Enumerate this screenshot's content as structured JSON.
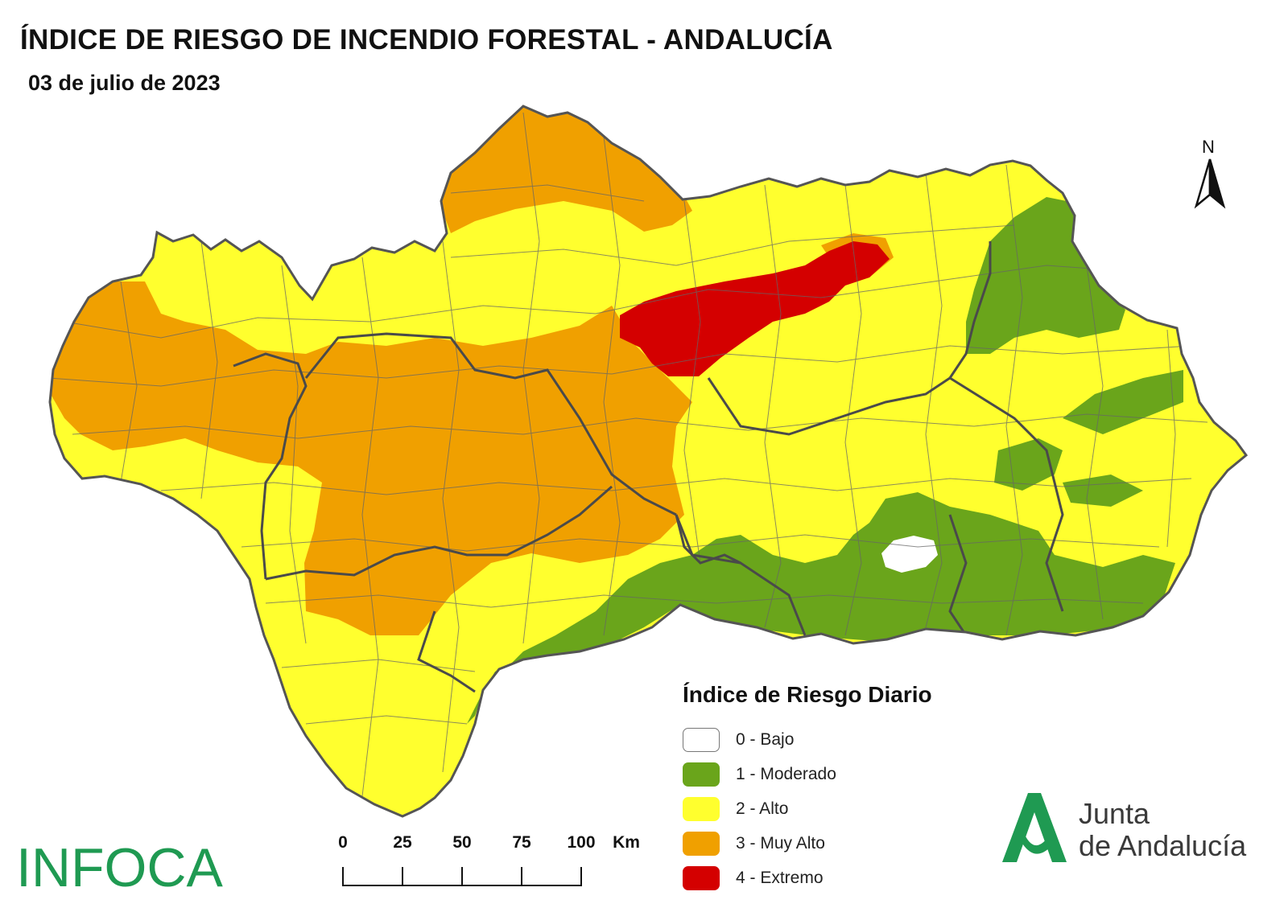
{
  "header": {
    "title": "ÍNDICE DE RIESGO DE INCENDIO FORESTAL - ANDALUCÍA",
    "date": "03 de julio de 2023"
  },
  "north_arrow": {
    "label": "N"
  },
  "legend": {
    "title": "Índice de Riesgo Diario",
    "items": [
      {
        "label": "0 - Bajo",
        "color": "#ffffff"
      },
      {
        "label": "1 - Moderado",
        "color": "#6aa51b"
      },
      {
        "label": "2 - Alto",
        "color": "#ffff2e"
      },
      {
        "label": "3 - Muy Alto",
        "color": "#f0a000"
      },
      {
        "label": "4 - Extremo",
        "color": "#d40000"
      }
    ]
  },
  "scale_bar": {
    "ticks": [
      "0",
      "25",
      "50",
      "75",
      "100"
    ],
    "unit": "Km"
  },
  "logos": {
    "infoca": "INFOCA",
    "junta_line1": "Junta",
    "junta_line2": "de Andalucía"
  }
}
